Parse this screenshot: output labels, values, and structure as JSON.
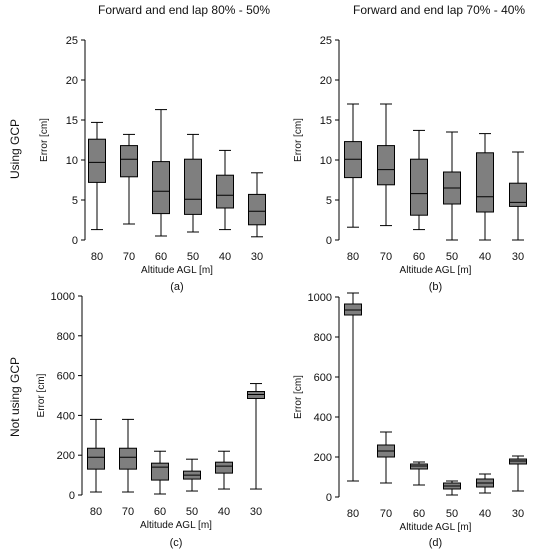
{
  "column_titles": [
    "Forward and end lap 80% - 50%",
    "Forward and end lap 70% - 40%"
  ],
  "row_titles": [
    "Using GCP",
    "Not using GCP"
  ],
  "chart_data": [
    {
      "type": "boxplot",
      "panel_label": "(a)",
      "categories": [
        "80",
        "70",
        "60",
        "50",
        "40",
        "30"
      ],
      "xlabel": "Altitude AGL [m]",
      "ylabel": "Error [cm]",
      "ylim": [
        0,
        25
      ],
      "yticks": [
        "0",
        "5",
        "10",
        "15",
        "20",
        "25"
      ],
      "fill_color": "#7f7f7f",
      "boxes": [
        {
          "min": 1.3,
          "q1": 7.2,
          "median": 9.7,
          "q3": 12.6,
          "max": 14.7
        },
        {
          "min": 2.0,
          "q1": 7.9,
          "median": 10.1,
          "q3": 11.8,
          "max": 13.2
        },
        {
          "min": 0.5,
          "q1": 3.3,
          "median": 6.1,
          "q3": 9.8,
          "max": 16.3
        },
        {
          "min": 1.0,
          "q1": 3.2,
          "median": 5.1,
          "q3": 10.1,
          "max": 13.2
        },
        {
          "min": 1.3,
          "q1": 4.0,
          "median": 5.6,
          "q3": 8.1,
          "max": 11.2
        },
        {
          "min": 0.4,
          "q1": 1.9,
          "median": 3.6,
          "q3": 5.7,
          "max": 8.4
        }
      ]
    },
    {
      "type": "boxplot",
      "panel_label": "(b)",
      "categories": [
        "80",
        "70",
        "60",
        "50",
        "40",
        "30"
      ],
      "xlabel": "Altitude AGL [m]",
      "ylabel": "Error [cm]",
      "ylim": [
        0,
        25
      ],
      "yticks": [
        "0",
        "5",
        "10",
        "15",
        "20",
        "25"
      ],
      "fill_color": "#7f7f7f",
      "boxes": [
        {
          "min": 1.6,
          "q1": 7.8,
          "median": 10.1,
          "q3": 12.3,
          "max": 17.0
        },
        {
          "min": 1.8,
          "q1": 6.9,
          "median": 8.8,
          "q3": 11.8,
          "max": 17.0
        },
        {
          "min": 1.3,
          "q1": 3.1,
          "median": 5.8,
          "q3": 10.1,
          "max": 13.7
        },
        {
          "min": 0.0,
          "q1": 4.5,
          "median": 6.5,
          "q3": 8.5,
          "max": 13.5
        },
        {
          "min": 0.0,
          "q1": 3.5,
          "median": 5.4,
          "q3": 10.9,
          "max": 13.3
        },
        {
          "min": 0.0,
          "q1": 4.2,
          "median": 4.7,
          "q3": 7.1,
          "max": 11.0
        }
      ]
    },
    {
      "type": "boxplot",
      "panel_label": "(c)",
      "categories": [
        "80",
        "70",
        "60",
        "50",
        "40",
        "30"
      ],
      "xlabel": "Altitude AGL [m]",
      "ylabel": "Error [cm]",
      "ylim": [
        0,
        1000
      ],
      "yticks": [
        "0",
        "200",
        "400",
        "600",
        "800",
        "1000"
      ],
      "fill_color": "#7f7f7f",
      "boxes": [
        {
          "min": 15,
          "q1": 130,
          "median": 190,
          "q3": 235,
          "max": 380
        },
        {
          "min": 15,
          "q1": 130,
          "median": 190,
          "q3": 235,
          "max": 380
        },
        {
          "min": 5,
          "q1": 75,
          "median": 140,
          "q3": 160,
          "max": 220
        },
        {
          "min": 20,
          "q1": 80,
          "median": 100,
          "q3": 120,
          "max": 180
        },
        {
          "min": 30,
          "q1": 110,
          "median": 145,
          "q3": 165,
          "max": 220
        },
        {
          "min": 30,
          "q1": 485,
          "median": 505,
          "q3": 520,
          "max": 560
        }
      ]
    },
    {
      "type": "boxplot",
      "panel_label": "(d)",
      "categories": [
        "80",
        "70",
        "60",
        "50",
        "40",
        "30"
      ],
      "xlabel": "Altitude AGL [m]",
      "ylabel": "Error [cm]",
      "ylim": [
        0,
        1000
      ],
      "yticks": [
        "0",
        "200",
        "400",
        "600",
        "800",
        "1000"
      ],
      "fill_color": "#7f7f7f",
      "boxes": [
        {
          "min": 80,
          "q1": 910,
          "median": 935,
          "q3": 965,
          "max": 1020
        },
        {
          "min": 70,
          "q1": 200,
          "median": 230,
          "q3": 260,
          "max": 325
        },
        {
          "min": 60,
          "q1": 140,
          "median": 155,
          "q3": 165,
          "max": 175
        },
        {
          "min": 10,
          "q1": 40,
          "median": 55,
          "q3": 70,
          "max": 80
        },
        {
          "min": 20,
          "q1": 50,
          "median": 70,
          "q3": 90,
          "max": 115
        },
        {
          "min": 30,
          "q1": 165,
          "median": 180,
          "q3": 190,
          "max": 205
        }
      ]
    }
  ]
}
